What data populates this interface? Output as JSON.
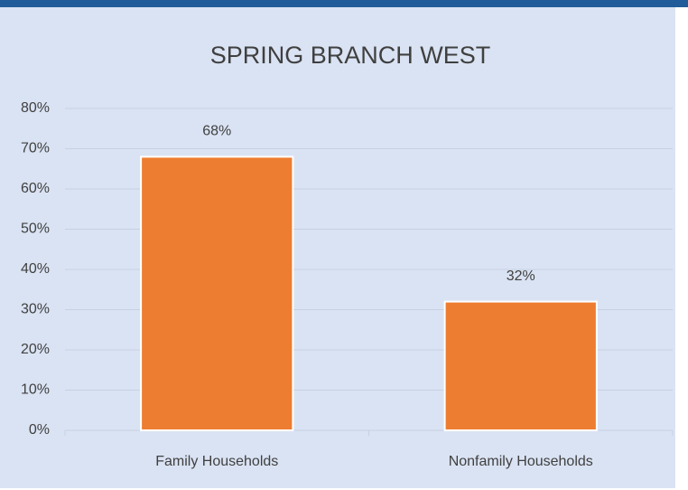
{
  "chart_data": {
    "type": "bar",
    "title": "SPRING BRANCH WEST",
    "categories": [
      "Family Households",
      "Nonfamily Households"
    ],
    "values": [
      68,
      32
    ],
    "value_labels": [
      "68%",
      "32%"
    ],
    "color": "#ed7d31",
    "ylim": [
      0,
      80
    ],
    "yticks": [
      {
        "value": 0,
        "label": "0%"
      },
      {
        "value": 10,
        "label": "10%"
      },
      {
        "value": 20,
        "label": "20%"
      },
      {
        "value": 30,
        "label": "30%"
      },
      {
        "value": 40,
        "label": "40%"
      },
      {
        "value": 50,
        "label": "50%"
      },
      {
        "value": 60,
        "label": "60%"
      },
      {
        "value": 70,
        "label": "70%"
      },
      {
        "value": 80,
        "label": "80%"
      }
    ],
    "grid": true
  }
}
